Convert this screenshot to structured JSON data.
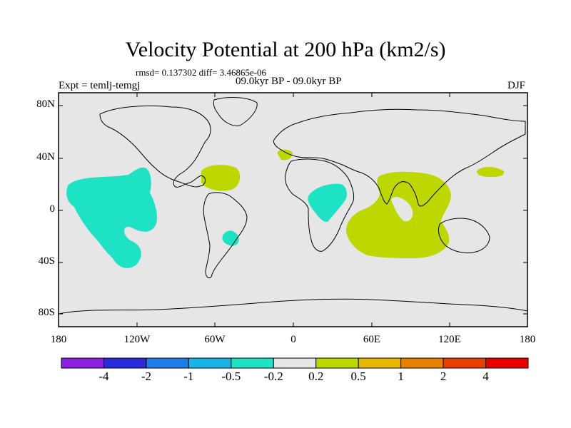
{
  "title": "Velocity Potential at 200 hPa (km2/s)",
  "stats": "rmsd= 0.137302 diff= 3.46865e-06",
  "period": "09.0kyr BP - 09.0kyr BP",
  "experiment": "Expt = temlj-temgj",
  "season": "DJF",
  "axes": {
    "lat_labels": [
      "80N",
      "40N",
      "0",
      "40S",
      "80S"
    ],
    "lon_labels": [
      "180",
      "120W",
      "60W",
      "0",
      "60E",
      "120E",
      "180"
    ]
  },
  "colorbar": {
    "labels": [
      "-4",
      "-2",
      "-1",
      "-0.5",
      "-0.2",
      "0.2",
      "0.5",
      "1",
      "2",
      "4"
    ],
    "colors": [
      "#8c20e0",
      "#2a2ad8",
      "#1e7ee8",
      "#18b4e6",
      "#1ee2c4",
      "#e6e6e6",
      "#bcd800",
      "#e6b800",
      "#e68000",
      "#e64000",
      "#e60000"
    ]
  },
  "regions": {
    "negative_color": "#1ee2c4",
    "positive_color": "#bcd800",
    "background_color": "#e6e6e6"
  }
}
